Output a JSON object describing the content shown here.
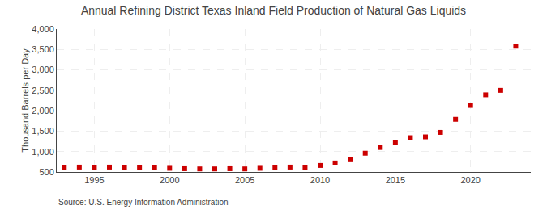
{
  "chart_data": {
    "type": "scatter",
    "title": "Annual Refining District Texas Inland Field Production of Natural Gas Liquids",
    "ylabel": "Thousand Barrels per Day",
    "source": "Source: U.S. Energy Information Administration",
    "x": [
      1993,
      1994,
      1995,
      1996,
      1997,
      1998,
      1999,
      2000,
      2001,
      2002,
      2003,
      2004,
      2005,
      2006,
      2007,
      2008,
      2009,
      2010,
      2011,
      2012,
      2013,
      2014,
      2015,
      2016,
      2017,
      2018,
      2019,
      2020,
      2021,
      2022,
      2023
    ],
    "values": [
      610,
      620,
      615,
      620,
      618,
      615,
      600,
      590,
      580,
      575,
      575,
      580,
      575,
      590,
      600,
      620,
      610,
      660,
      720,
      800,
      960,
      1100,
      1230,
      1340,
      1360,
      1470,
      1790,
      2130,
      2390,
      2500,
      3580
    ],
    "color": "#cc0000",
    "marker": "square",
    "xlim": [
      1992.5,
      2024
    ],
    "xticks": [
      1995,
      2000,
      2005,
      2010,
      2015,
      2020
    ],
    "ylim": [
      500,
      4000
    ],
    "yticks": [
      500,
      {
        "value": 1000,
        "label": "1,000"
      },
      {
        "value": 1500,
        "label": "1,500"
      },
      {
        "value": 2000,
        "label": "2,000"
      },
      {
        "value": 2500,
        "label": "2,500"
      },
      {
        "value": 3000,
        "label": "3,000"
      },
      {
        "value": 3500,
        "label": "3,500"
      },
      {
        "value": 4000,
        "label": "4,000"
      }
    ],
    "grid": true
  }
}
